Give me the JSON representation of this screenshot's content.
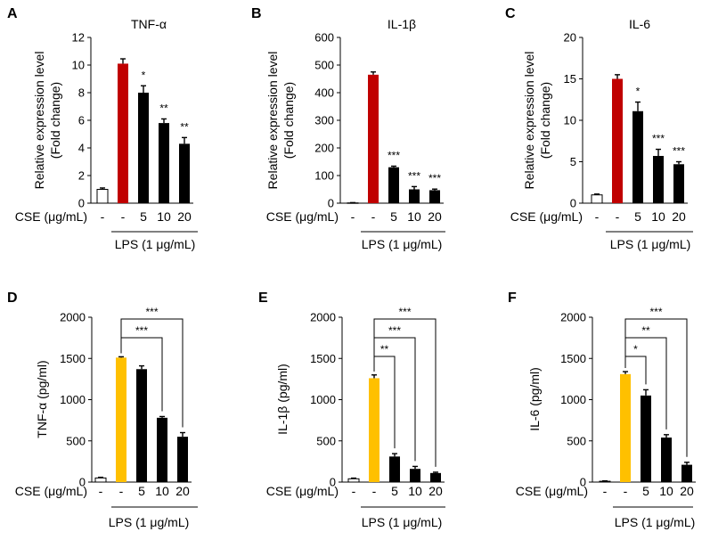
{
  "colors": {
    "empty": "#ffffff",
    "red": "#c00000",
    "yellow": "#ffc000",
    "black": "#000000"
  },
  "chart_data": [
    {
      "type": "bar",
      "letter": "A",
      "title": "TNF-α",
      "ylabel_lines": [
        "Relative expression level",
        "(Fold change)"
      ],
      "ylim": [
        0,
        12
      ],
      "ticks": [
        "0",
        "2",
        "4",
        "6",
        "8",
        "10",
        "12"
      ],
      "categories": [
        "-",
        "-",
        "5",
        "10",
        "20"
      ],
      "values": [
        1.0,
        10.1,
        8.0,
        5.8,
        4.3
      ],
      "errors": [
        0.1,
        0.35,
        0.5,
        0.3,
        0.45
      ],
      "bar_colors": [
        "empty",
        "red",
        "black",
        "black",
        "black"
      ],
      "significance": [
        "",
        "",
        "*",
        "**",
        "**"
      ],
      "brackets": [],
      "row_label": "CSE (μg/mL)",
      "group_label": "LPS (1 μg/mL)"
    },
    {
      "type": "bar",
      "letter": "B",
      "title": "IL-1β",
      "ylabel_lines": [
        "Relative expression level",
        "(Fold change)"
      ],
      "ylim": [
        0,
        600
      ],
      "ticks": [
        "0",
        "100",
        "200",
        "300",
        "400",
        "500",
        "600"
      ],
      "categories": [
        "-",
        "-",
        "5",
        "10",
        "20"
      ],
      "values": [
        1,
        465,
        130,
        50,
        47
      ],
      "errors": [
        1,
        10,
        4,
        10,
        4
      ],
      "bar_colors": [
        "empty",
        "red",
        "black",
        "black",
        "black"
      ],
      "significance": [
        "",
        "",
        "***",
        "***",
        "***"
      ],
      "brackets": [],
      "row_label": "CSE (μg/mL)",
      "group_label": "LPS (1 μg/mL)"
    },
    {
      "type": "bar",
      "letter": "C",
      "title": "IL-6",
      "ylabel_lines": [
        "Relative expression level",
        "(Fold change)"
      ],
      "ylim": [
        0,
        20
      ],
      "ticks": [
        "0",
        "5",
        "10",
        "15",
        "20"
      ],
      "categories": [
        "-",
        "-",
        "5",
        "10",
        "20"
      ],
      "values": [
        1.0,
        15.0,
        11.1,
        5.7,
        4.7
      ],
      "errors": [
        0.1,
        0.5,
        1.1,
        0.8,
        0.3
      ],
      "bar_colors": [
        "empty",
        "red",
        "black",
        "black",
        "black"
      ],
      "significance": [
        "",
        "",
        "*",
        "***",
        "***"
      ],
      "brackets": [],
      "row_label": "CSE (μg/mL)",
      "group_label": "LPS (1 μg/mL)"
    },
    {
      "type": "bar",
      "letter": "D",
      "title": "",
      "ylabel_lines": [
        "TNF-α (pg/ml)"
      ],
      "ylim": [
        0,
        2000
      ],
      "ticks": [
        "0",
        "500",
        "1000",
        "1500",
        "2000"
      ],
      "categories": [
        "-",
        "-",
        "5",
        "10",
        "20"
      ],
      "values": [
        50,
        1510,
        1370,
        780,
        550
      ],
      "errors": [
        8,
        10,
        40,
        15,
        50
      ],
      "bar_colors": [
        "empty",
        "yellow",
        "black",
        "black",
        "black"
      ],
      "significance": [],
      "brackets": [
        {
          "from": 1,
          "to": 3,
          "label": "***"
        },
        {
          "from": 1,
          "to": 4,
          "label": "***"
        }
      ],
      "row_label": "CSE (μg/mL)",
      "group_label": "LPS (1 μg/mL)"
    },
    {
      "type": "bar",
      "letter": "E",
      "title": "",
      "ylabel_lines": [
        "IL-1β (pg/ml)"
      ],
      "ylim": [
        0,
        2000
      ],
      "ticks": [
        "0",
        "500",
        "1000",
        "1500",
        "2000"
      ],
      "categories": [
        "-",
        "-",
        "5",
        "10",
        "20"
      ],
      "values": [
        40,
        1260,
        310,
        160,
        110
      ],
      "errors": [
        8,
        40,
        35,
        30,
        10
      ],
      "bar_colors": [
        "empty",
        "yellow",
        "black",
        "black",
        "black"
      ],
      "significance": [],
      "brackets": [
        {
          "from": 1,
          "to": 2,
          "label": "**"
        },
        {
          "from": 1,
          "to": 3,
          "label": "***"
        },
        {
          "from": 1,
          "to": 4,
          "label": "***"
        }
      ],
      "row_label": "CSE (μg/mL)",
      "group_label": "LPS (1 μg/mL)"
    },
    {
      "type": "bar",
      "letter": "F",
      "title": "",
      "ylabel_lines": [
        "IL-6 (pg/ml)"
      ],
      "ylim": [
        0,
        2000
      ],
      "ticks": [
        "0",
        "500",
        "1000",
        "1500",
        "2000"
      ],
      "categories": [
        "-",
        "-",
        "5",
        "10",
        "20"
      ],
      "values": [
        10,
        1310,
        1050,
        540,
        210
      ],
      "errors": [
        5,
        30,
        70,
        35,
        30
      ],
      "bar_colors": [
        "empty",
        "yellow",
        "black",
        "black",
        "black"
      ],
      "significance": [],
      "brackets": [
        {
          "from": 1,
          "to": 2,
          "label": "*"
        },
        {
          "from": 1,
          "to": 3,
          "label": "**"
        },
        {
          "from": 1,
          "to": 4,
          "label": "***"
        }
      ],
      "row_label": "CSE (μg/mL)",
      "group_label": "LPS (1 μg/mL)"
    }
  ]
}
